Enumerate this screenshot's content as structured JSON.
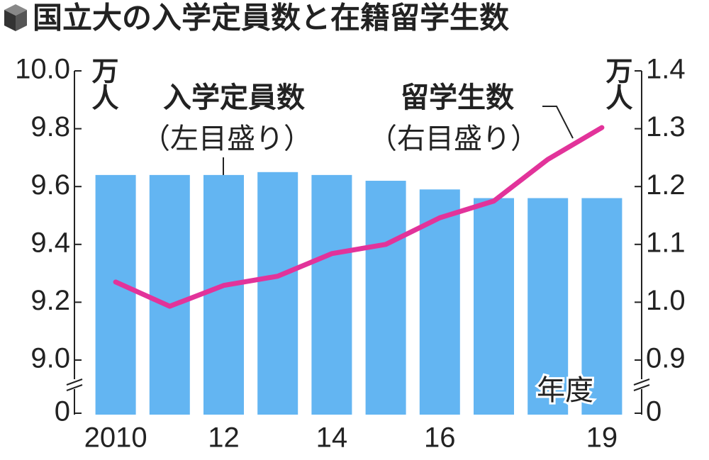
{
  "chart_data": {
    "type": "bar_line",
    "title": "国立大の入学定員数と在籍留学生数",
    "categories": [
      "2010",
      null,
      "12",
      null,
      "14",
      null,
      "16",
      null,
      null,
      "19"
    ],
    "x_label": "年度",
    "y_unit": "万人",
    "y2_unit": "万人",
    "series": [
      {
        "name": "入学定員数",
        "note": "（左目盛り）",
        "type": "bar",
        "color": "#63b5f2",
        "values": [
          9.64,
          9.64,
          9.64,
          9.65,
          9.64,
          9.62,
          9.59,
          9.56,
          9.56,
          9.56
        ]
      },
      {
        "name": "留学生数",
        "note": "（右目盛り）",
        "type": "line",
        "axis": "y2",
        "color": "#e2339a",
        "values": [
          1.035,
          0.993,
          1.029,
          1.045,
          1.084,
          1.1,
          1.146,
          1.175,
          1.247,
          1.302
        ]
      }
    ],
    "ylim": [
      0,
      10
    ],
    "y_break": [
      0,
      9
    ],
    "yticks": [
      {
        "value": 10,
        "label": "10.0"
      },
      9.8,
      9.6,
      9.4,
      9.2,
      {
        "value": 9,
        "label": "9.0"
      },
      0
    ],
    "y2lim": [
      0,
      1.4
    ],
    "y2_break": [
      0,
      0.9
    ],
    "y2ticks": [
      1.4,
      1.3,
      1.2,
      1.1,
      {
        "value": 1,
        "label": "1.0"
      },
      0.9,
      0
    ]
  }
}
